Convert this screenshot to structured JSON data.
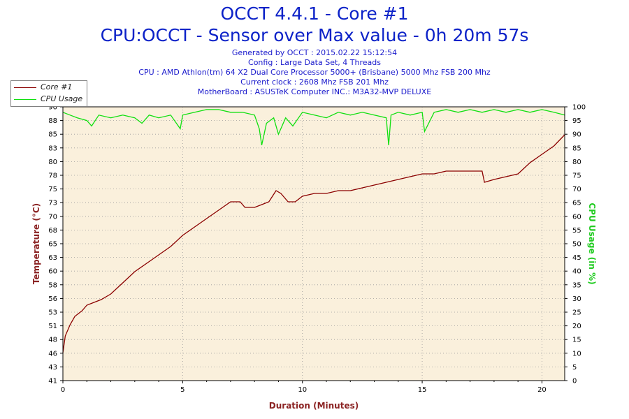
{
  "header": {
    "title": "OCCT 4.4.1 - Core #1",
    "subtitle": "CPU:OCCT - Sensor over Max value - 0h 20m 57s",
    "generated": "Generated by OCCT : 2015.02.22 15:12:54",
    "config": "Config : Large Data Set, 4 Threads",
    "cpu": "CPU : AMD Athlon(tm) 64 X2 Dual Core Processor 5000+ (Brisbane) 5000 Mhz FSB 200 Mhz",
    "clock": "Current clock : 2608 Mhz FSB 201 Mhz",
    "motherboard": "MotherBoard : ASUSTeK Computer INC.: M3A32-MVP DELUXE"
  },
  "colors": {
    "title": "#0c22c8",
    "plot_bg": "#faf0dc",
    "temp": "#8b0000",
    "cpu": "#10e010",
    "axis_label_left": "#8b2323",
    "axis_label_right": "#22cc22"
  },
  "chart_data": {
    "type": "line",
    "title": "OCCT 4.4.1 - Core #1",
    "xlabel": "Duration (Minutes)",
    "ylabel": "Temperature (°C)",
    "y2label": "CPU Usage (in %)",
    "xlim": [
      0,
      20.95
    ],
    "ylim": [
      41,
      90
    ],
    "y2lim": [
      0,
      100
    ],
    "grid": true,
    "x_ticks": [
      "0",
      "5",
      "10",
      "15",
      "20"
    ],
    "y_ticks": [
      "41",
      "43",
      "46",
      "48",
      "51",
      "53",
      "56",
      "58",
      "60",
      "63",
      "65",
      "68",
      "70",
      "73",
      "75",
      "78",
      "80",
      "83",
      "85",
      "88",
      "90"
    ],
    "y2_ticks": [
      "0",
      "5",
      "10",
      "15",
      "20",
      "25",
      "30",
      "35",
      "40",
      "45",
      "50",
      "55",
      "60",
      "65",
      "70",
      "75",
      "80",
      "85",
      "90",
      "95",
      "100"
    ],
    "legend_position": "top-left",
    "series": [
      {
        "name": "Core #1",
        "axis": "left",
        "x": [
          0,
          0.1,
          0.3,
          0.5,
          0.8,
          1.0,
          1.3,
          1.6,
          2.0,
          2.5,
          3.0,
          3.5,
          4.0,
          4.5,
          5.0,
          5.5,
          6.0,
          6.5,
          7.0,
          7.4,
          7.6,
          7.8,
          8.0,
          8.3,
          8.6,
          8.9,
          9.1,
          9.4,
          9.7,
          10.0,
          10.5,
          11.0,
          11.5,
          12.0,
          12.5,
          13.0,
          13.5,
          14.0,
          14.5,
          15.0,
          15.5,
          16.0,
          16.5,
          17.0,
          17.5,
          17.6,
          18.0,
          18.5,
          19.0,
          19.5,
          20.0,
          20.5,
          20.95
        ],
        "values": [
          46,
          49,
          51,
          52.5,
          53.5,
          54.5,
          55,
          55.5,
          56.5,
          58.5,
          60.5,
          62,
          63.5,
          65,
          67,
          68.5,
          70,
          71.5,
          73,
          73,
          72,
          72,
          72,
          72.5,
          73,
          75,
          74.5,
          73,
          73,
          74,
          74.5,
          74.5,
          75,
          75,
          75.5,
          76,
          76.5,
          77,
          77.5,
          78,
          78,
          78.5,
          78.5,
          78.5,
          78.5,
          76.5,
          77,
          77.5,
          78,
          80,
          81.5,
          83,
          85
        ]
      },
      {
        "name": "CPU Usage",
        "axis": "right",
        "x": [
          0,
          0.3,
          0.6,
          1.0,
          1.2,
          1.5,
          2.0,
          2.5,
          3.0,
          3.3,
          3.6,
          4.0,
          4.5,
          4.9,
          5.0,
          5.5,
          6.0,
          6.5,
          7.0,
          7.5,
          8.0,
          8.2,
          8.3,
          8.5,
          8.8,
          9.0,
          9.3,
          9.6,
          10.0,
          10.5,
          11.0,
          11.5,
          12.0,
          12.5,
          13.0,
          13.5,
          13.6,
          13.7,
          14.0,
          14.5,
          15.0,
          15.1,
          15.5,
          16.0,
          16.5,
          17.0,
          17.5,
          18.0,
          18.5,
          19.0,
          19.5,
          20.0,
          20.5,
          20.95
        ],
        "values": [
          98,
          97,
          96,
          95,
          93,
          97,
          96,
          97,
          96,
          94,
          97,
          96,
          97,
          92,
          97,
          98,
          99,
          99,
          98,
          98,
          97,
          92,
          86,
          94,
          96,
          90,
          96,
          93,
          98,
          97,
          96,
          98,
          97,
          98,
          97,
          96,
          86,
          97,
          98,
          97,
          98,
          91,
          98,
          99,
          98,
          99,
          98,
          99,
          98,
          99,
          98,
          99,
          98,
          97
        ]
      }
    ]
  }
}
